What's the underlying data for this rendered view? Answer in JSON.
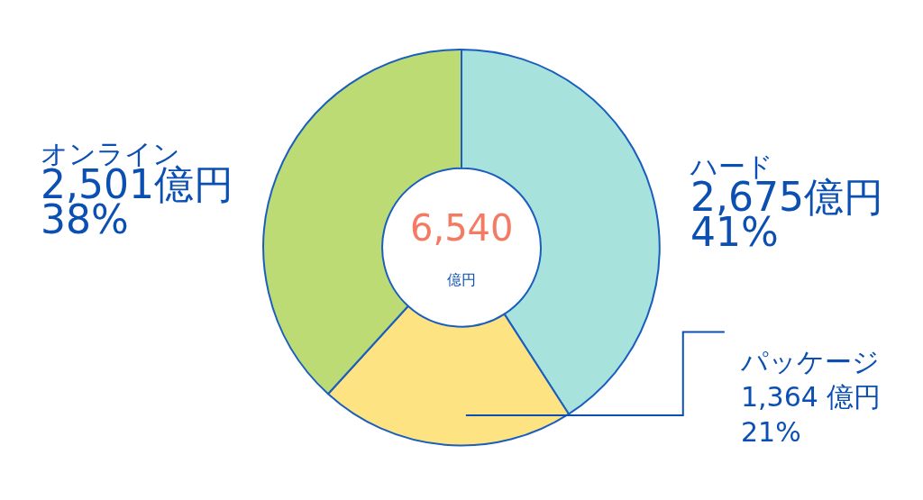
{
  "chart_data": {
    "type": "donut",
    "categories": [
      "ハード",
      "パッケージ",
      "オンライン"
    ],
    "values": [
      2675,
      1364,
      2501
    ],
    "colors": [
      "#a8e2dc",
      "#fde382",
      "#bcdb74"
    ],
    "value_labels": [
      "2,675億円\n41%",
      "1,364 億円\n21%",
      "2,501億円\n38%"
    ],
    "annotations": [
      "6,540",
      "億円"
    ],
    "legend": false
  }
}
